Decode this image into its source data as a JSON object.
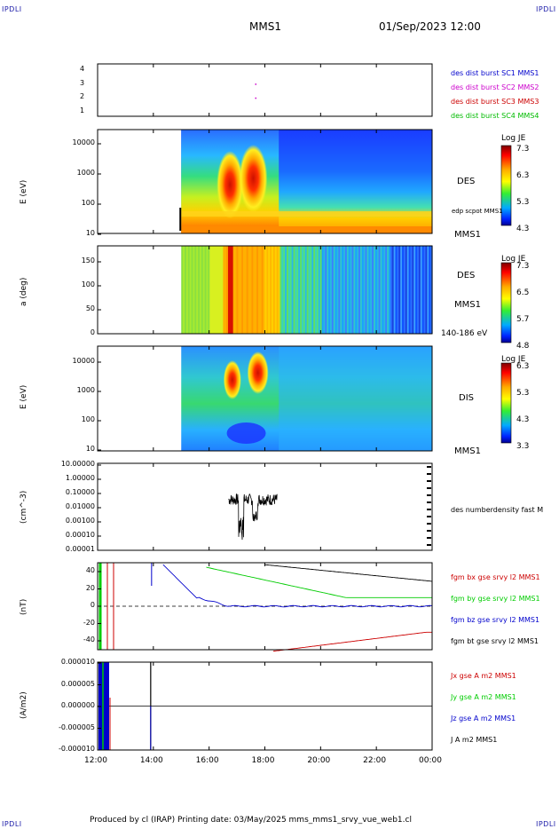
{
  "corner_label": "IPDLI",
  "header": {
    "title": "MMS1",
    "datetime": "01/Sep/2023 12:00"
  },
  "footer": {
    "text": "Produced by cl (IRAP)   Printing date: 03/May/2025   mms_mms1_srvy_vue_web1.cl"
  },
  "colors": {
    "mms1": "#0000cc",
    "mms2": "#cc00cc",
    "mms3": "#cc0000",
    "mms4": "#00bb00",
    "bx": "#cc0000",
    "by": "#00cc00",
    "bz": "#0000cc",
    "bt": "#000000"
  },
  "chart_data": [
    {
      "type": "scatter",
      "name": "burst",
      "yticks": [
        "1",
        "2",
        "3",
        "4"
      ],
      "points": [
        {
          "x": "17:40",
          "y": 3,
          "sc": "MMS2"
        },
        {
          "x": "17:40",
          "y": 2,
          "sc": "MMS2"
        }
      ],
      "legend": [
        "des dist burst SC1 MMS1",
        "des dist burst SC2 MMS2",
        "des dist burst SC3 MMS3",
        "des dist burst SC4 MMS4"
      ]
    },
    {
      "type": "heatmap",
      "name": "des-energy",
      "ylabel": "E (eV)",
      "yticks": [
        "10",
        "100",
        "1000",
        "10000"
      ],
      "right_labels": [
        "DES",
        "edp scpot MMS1",
        "MMS1"
      ],
      "colorbar": {
        "title": "Log JE",
        "ticks": [
          "7.3",
          "6.3",
          "5.3",
          "4.3"
        ]
      }
    },
    {
      "type": "heatmap",
      "name": "des-pitch",
      "ylabel": "a (deg)",
      "yticks": [
        "0",
        "50",
        "100",
        "150"
      ],
      "right_labels": [
        "DES",
        "MMS1",
        "140-186 eV"
      ],
      "colorbar": {
        "title": "Log JE",
        "ticks": [
          "7.3",
          "6.5",
          "5.7",
          "4.8"
        ]
      }
    },
    {
      "type": "heatmap",
      "name": "dis-energy",
      "ylabel": "E (eV)",
      "yticks": [
        "10",
        "100",
        "1000",
        "10000"
      ],
      "right_labels": [
        "DIS",
        "MMS1"
      ],
      "colorbar": {
        "title": "Log JE",
        "ticks": [
          "6.3",
          "5.3",
          "4.3",
          "3.3"
        ]
      }
    },
    {
      "type": "line",
      "name": "density",
      "ylabel": "(cm^-3)",
      "yticks": [
        "10.00000",
        "1.00000",
        "0.10000",
        "0.01000",
        "0.00100",
        "0.00010",
        "0.00001"
      ],
      "legend": [
        "des numberdensity fast M"
      ]
    },
    {
      "type": "line",
      "name": "fgm",
      "ylabel": "(nT)",
      "yticks": [
        "40",
        "20",
        "0",
        "-20",
        "-40"
      ],
      "legend": [
        "fgm bx gse srvy l2 MMS1",
        "fgm by gse srvy l2 MMS1",
        "fgm bz gse srvy l2 MMS1",
        "fgm bt gse srvy l2 MMS1"
      ]
    },
    {
      "type": "line",
      "name": "current",
      "ylabel": "(A/m2)",
      "yticks": [
        "0.000010",
        "0.000005",
        "0.000000",
        "-0.000005",
        "-0.000010"
      ],
      "legend": [
        "Jx gse A m2 MMS1",
        "Jy gse A m2 MMS1",
        "Jz gse A m2 MMS1",
        "J A m2 MMS1"
      ]
    }
  ],
  "xaxis": {
    "ticks": [
      "12:00",
      "14:00",
      "16:00",
      "18:00",
      "20:00",
      "22:00",
      "00:00"
    ]
  }
}
